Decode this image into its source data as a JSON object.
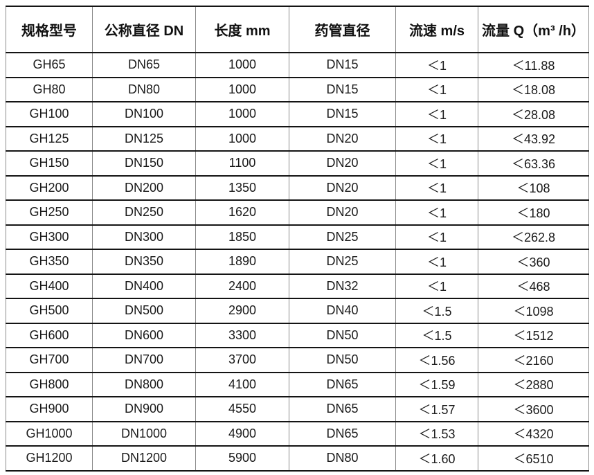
{
  "table": {
    "columns": [
      "规格型号",
      "公称直径 DN",
      "长度 mm",
      "药管直径",
      "流速 m/s",
      "流量 Q（m³ /h）"
    ],
    "rows": [
      [
        "GH65",
        "DN65",
        "1000",
        "DN15",
        "＜1",
        "＜11.88"
      ],
      [
        "GH80",
        "DN80",
        "1000",
        "DN15",
        "＜1",
        "＜18.08"
      ],
      [
        "GH100",
        "DN100",
        "1000",
        "DN15",
        "＜1",
        "＜28.08"
      ],
      [
        "GH125",
        "DN125",
        "1000",
        "DN20",
        "＜1",
        "＜43.92"
      ],
      [
        "GH150",
        "DN150",
        "1100",
        "DN20",
        "＜1",
        "＜63.36"
      ],
      [
        "GH200",
        "DN200",
        "1350",
        "DN20",
        "＜1",
        "＜108"
      ],
      [
        "GH250",
        "DN250",
        "1620",
        "DN20",
        "＜1",
        "＜180"
      ],
      [
        "GH300",
        "DN300",
        "1850",
        "DN25",
        "＜1",
        "＜262.8"
      ],
      [
        "GH350",
        "DN350",
        "1890",
        "DN25",
        "＜1",
        "＜360"
      ],
      [
        "GH400",
        "DN400",
        "2400",
        "DN32",
        "＜1",
        "＜468"
      ],
      [
        "GH500",
        "DN500",
        "2900",
        "DN40",
        "＜1.5",
        "＜1098"
      ],
      [
        "GH600",
        "DN600",
        "3300",
        "DN50",
        "＜1.5",
        "＜1512"
      ],
      [
        "GH700",
        "DN700",
        "3700",
        "DN50",
        "＜1.56",
        "＜2160"
      ],
      [
        "GH800",
        "DN800",
        "4100",
        "DN65",
        "＜1.59",
        "＜2880"
      ],
      [
        "GH900",
        "DN900",
        "4550",
        "DN65",
        "＜1.57",
        "＜3600"
      ],
      [
        "GH1000",
        "DN1000",
        "4900",
        "DN65",
        "＜1.53",
        "＜4320"
      ],
      [
        "GH1200",
        "DN1200",
        "5900",
        "DN80",
        "＜1.60",
        "＜6510"
      ]
    ],
    "colors": {
      "horizontal_border": "#141414",
      "vertical_border": "#8a8a8a",
      "text": "#1a1a1a",
      "background": "#ffffff"
    }
  }
}
